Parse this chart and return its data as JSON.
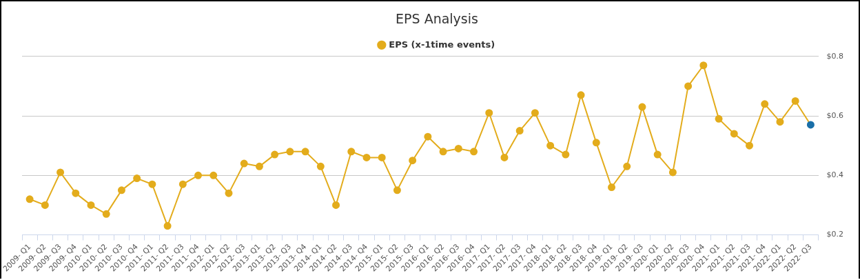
{
  "chart_data": {
    "type": "line",
    "title": "EPS Analysis",
    "categories": [
      "2009- Q1",
      "2009- Q2",
      "2009- Q3",
      "2009- Q4",
      "2010- Q1",
      "2010- Q2",
      "2010- Q3",
      "2010- Q4",
      "2011- Q1",
      "2011- Q2",
      "2011- Q3",
      "2011- Q4",
      "2012- Q1",
      "2012- Q2",
      "2012- Q3",
      "2013- Q1",
      "2013- Q2",
      "2013- Q3",
      "2013- Q4",
      "2014- Q1",
      "2014- Q2",
      "2014- Q3",
      "2014- Q4",
      "2015- Q1",
      "2015- Q2",
      "2015- Q3",
      "2016- Q1",
      "2016- Q2",
      "2016- Q3",
      "2016- Q4",
      "2017- Q1",
      "2017- Q2",
      "2017- Q3",
      "2017- Q4",
      "2018- Q1",
      "2018- Q2",
      "2018- Q3",
      "2018- Q4",
      "2019- Q1",
      "2019- Q2",
      "2019- Q3",
      "2020- Q1",
      "2020- Q2",
      "2020- Q3",
      "2020- Q4",
      "2021- Q1",
      "2021- Q2",
      "2021- Q3",
      "2021- Q4",
      "2022- Q1",
      "2022- Q2",
      "2022- Q3"
    ],
    "series": [
      {
        "name": "EPS (x-1time events)",
        "color": "#e3ac1c",
        "colors": [
          "#e3ac1c",
          "#e3ac1c",
          "#e3ac1c",
          "#e3ac1c",
          "#e3ac1c",
          "#e3ac1c",
          "#e3ac1c",
          "#e3ac1c",
          "#e3ac1c",
          "#e3ac1c",
          "#e3ac1c",
          "#e3ac1c",
          "#e3ac1c",
          "#e3ac1c",
          "#e3ac1c",
          "#e3ac1c",
          "#e3ac1c",
          "#e3ac1c",
          "#e3ac1c",
          "#e3ac1c",
          "#e3ac1c",
          "#e3ac1c",
          "#e3ac1c",
          "#e3ac1c",
          "#e3ac1c",
          "#e3ac1c",
          "#e3ac1c",
          "#e3ac1c",
          "#e3ac1c",
          "#e3ac1c",
          "#e3ac1c",
          "#e3ac1c",
          "#e3ac1c",
          "#e3ac1c",
          "#e3ac1c",
          "#e3ac1c",
          "#e3ac1c",
          "#e3ac1c",
          "#e3ac1c",
          "#e3ac1c",
          "#e3ac1c",
          "#e3ac1c",
          "#e3ac1c",
          "#e3ac1c",
          "#e3ac1c",
          "#e3ac1c",
          "#e3ac1c",
          "#e3ac1c",
          "#e3ac1c",
          "#e3ac1c",
          "#e3ac1c",
          "#1a6fa8"
        ],
        "values": [
          0.32,
          0.3,
          0.41,
          0.34,
          0.3,
          0.27,
          0.35,
          0.39,
          0.37,
          0.23,
          0.37,
          0.4,
          0.4,
          0.34,
          0.44,
          0.43,
          0.47,
          0.48,
          0.48,
          0.43,
          0.3,
          0.48,
          0.46,
          0.46,
          0.35,
          0.45,
          0.53,
          0.48,
          0.49,
          0.48,
          0.61,
          0.46,
          0.55,
          0.61,
          0.5,
          0.47,
          0.67,
          0.51,
          0.36,
          0.43,
          0.63,
          0.47,
          0.41,
          0.7,
          0.77,
          0.59,
          0.54,
          0.5,
          0.64,
          0.58,
          0.65,
          0.57
        ]
      }
    ],
    "ylim": [
      0.2,
      0.8
    ],
    "yticks": [
      {
        "value": 0.2,
        "label": "$0.2"
      },
      {
        "value": 0.4,
        "label": "$0.4"
      },
      {
        "value": 0.6,
        "label": "$0.6"
      },
      {
        "value": 0.8,
        "label": "$0.8"
      }
    ],
    "grid": "y",
    "legend": "top",
    "marker": "circle",
    "line_style": "solid"
  }
}
